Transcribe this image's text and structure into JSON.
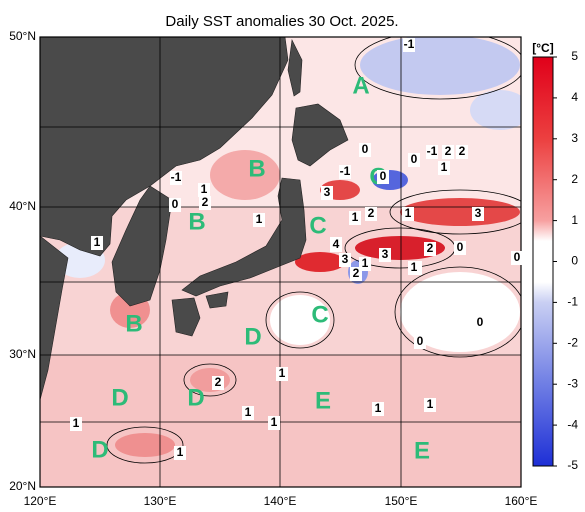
{
  "title": "Daily SST anomalies 30 Oct. 2025.",
  "unit": "[°C]",
  "colorbar": {
    "ticks": [
      5,
      4,
      3,
      2,
      1,
      0,
      -1,
      -2,
      -3,
      -4,
      -5
    ]
  },
  "lat_labels": [
    "50°N",
    "40°N",
    "30°N",
    "20°N"
  ],
  "lon_labels": [
    "120°E",
    "130°E",
    "140°E",
    "150°E",
    "160°E"
  ],
  "regions": [
    "A",
    "B",
    "C",
    "B",
    "C",
    "B",
    "D",
    "C",
    "D",
    "D",
    "E",
    "D",
    "E"
  ],
  "contour_labels": [
    "-1",
    "0",
    "-1",
    "2",
    "0",
    "1",
    "-1",
    "3",
    "0",
    "-1",
    "1",
    "2",
    "0",
    "1",
    "1",
    "3",
    "2",
    "1",
    "3",
    "4",
    "3",
    "1",
    "2",
    "3",
    "2",
    "0",
    "0",
    "1",
    "1",
    "0",
    "0",
    "1",
    "2",
    "1",
    "1",
    "1",
    "1",
    "1",
    "1",
    "2",
    "1"
  ]
}
